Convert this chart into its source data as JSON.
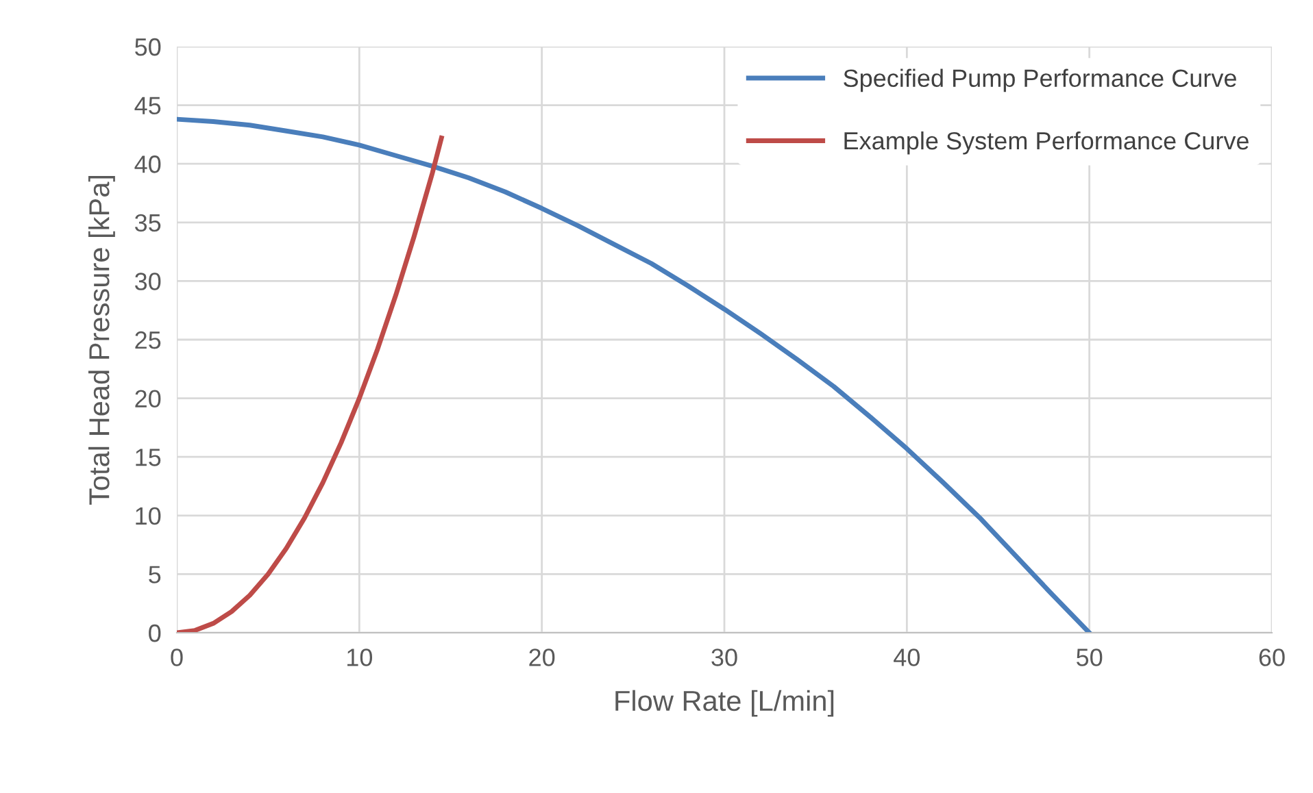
{
  "chart_data": {
    "type": "line",
    "xlabel": "Flow Rate [L/min]",
    "ylabel": "Total Head Pressure [kPa]",
    "xlim": [
      0,
      60
    ],
    "xticks": [
      0,
      10,
      20,
      30,
      40,
      50,
      60
    ],
    "ylim": [
      0,
      50
    ],
    "yticks": [
      0,
      5,
      10,
      15,
      20,
      25,
      30,
      35,
      40,
      45,
      50
    ],
    "grid": true,
    "legend": "top right",
    "marker": "none",
    "line_style": "solid",
    "series": [
      {
        "name": "Specified Pump Performance Curve",
        "color": "#4a7ebb",
        "x": [
          0,
          2,
          4,
          6,
          8,
          10,
          12,
          14,
          16,
          18,
          20,
          22,
          24,
          26,
          28,
          30,
          32,
          34,
          36,
          38,
          40,
          42,
          44,
          46,
          48,
          50
        ],
        "values": [
          43.8,
          43.6,
          43.3,
          42.8,
          42.3,
          41.6,
          40.7,
          39.8,
          38.8,
          37.6,
          36.2,
          34.7,
          33.1,
          31.5,
          29.6,
          27.6,
          25.5,
          23.3,
          21.0,
          18.4,
          15.7,
          12.8,
          9.8,
          6.5,
          3.2,
          0
        ]
      },
      {
        "name": "Example System Performance Curve",
        "color": "#be4b48",
        "x": [
          0,
          1,
          2,
          3,
          4,
          5,
          6,
          7,
          8,
          9,
          10,
          11,
          12,
          13,
          14,
          14.5
        ],
        "values": [
          0,
          0.2,
          0.8,
          1.8,
          3.2,
          5,
          7.2,
          9.8,
          12.8,
          16.2,
          20,
          24.2,
          28.8,
          33.8,
          39.2,
          42.2
        ]
      }
    ]
  }
}
